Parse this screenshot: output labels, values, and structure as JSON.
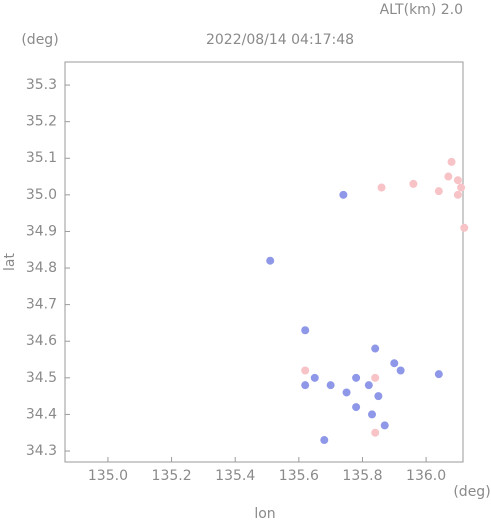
{
  "chart_data": {
    "type": "scatter",
    "title": "2022/08/14 04:17:48",
    "subtitle": "ALT(km) 2.0",
    "y_unit": "(deg)",
    "x_unit": "(deg)",
    "xlabel": "lon",
    "ylabel": "lat",
    "xlim": [
      134.865,
      136.116
    ],
    "ylim": [
      34.27,
      35.363
    ],
    "xticks": [
      {
        "value": 135.0,
        "label": "135.0"
      },
      135.2,
      135.4,
      135.6,
      135.8,
      {
        "value": 136.0,
        "label": "136.0"
      }
    ],
    "yticks": [
      35.3,
      35.2,
      35.1,
      {
        "value": 35.0,
        "label": "35.0"
      },
      34.9,
      34.8,
      34.7,
      34.6,
      34.5,
      34.4,
      34.3
    ],
    "series": [
      {
        "color": "#f7c3c6",
        "x": [
          136.08,
          136.1,
          136.11,
          136.1,
          136.07,
          136.12,
          135.96,
          136.04,
          135.86,
          135.62,
          135.84,
          135.84
        ],
        "y": [
          35.09,
          35.04,
          35.02,
          35.0,
          35.05,
          34.91,
          35.03,
          35.01,
          35.02,
          34.52,
          34.35,
          34.5
        ]
      },
      {
        "color": "#8f98e8",
        "x": [
          135.74,
          135.62,
          135.92,
          136.04,
          135.65,
          135.7,
          135.78,
          135.82,
          135.85,
          135.83,
          135.87,
          135.78,
          135.75,
          135.68,
          135.51,
          135.62,
          135.9,
          135.84
        ],
        "y": [
          35.0,
          34.63,
          34.52,
          34.51,
          34.5,
          34.48,
          34.5,
          34.48,
          34.45,
          34.4,
          34.37,
          34.42,
          34.46,
          34.33,
          34.82,
          34.48,
          34.54,
          34.58
        ]
      }
    ]
  }
}
